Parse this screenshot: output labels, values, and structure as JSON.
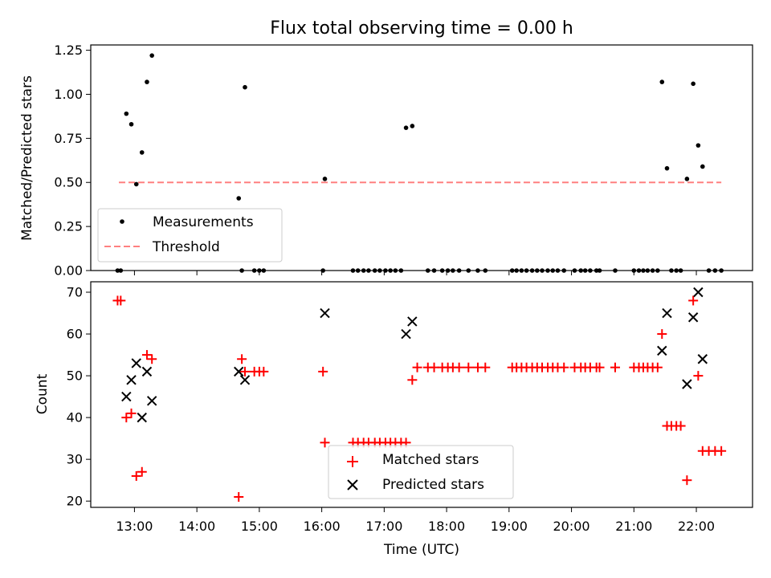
{
  "chart_data": [
    {
      "type": "scatter",
      "title": "Flux total observing time = 0.00 h",
      "xlabel": "",
      "ylabel": "Matched/Predicted stars",
      "ylim": [
        0,
        1.28
      ],
      "xlim": [
        12.3,
        22.9
      ],
      "yticks": [
        0.0,
        0.25,
        0.5,
        0.75,
        1.0,
        1.25
      ],
      "ytick_labels": [
        "0.00",
        "0.25",
        "0.50",
        "0.75",
        "1.00",
        "1.25"
      ],
      "legend": {
        "position": "lower-left",
        "entries": [
          "Measurements",
          "Threshold"
        ]
      },
      "grid": false,
      "colors": {
        "measurements": "#000000",
        "threshold": "#ff8080"
      },
      "series": [
        {
          "name": "Measurements",
          "marker": "dot",
          "x": [
            12.73,
            12.78,
            12.87,
            12.95,
            13.03,
            13.12,
            13.2,
            13.28,
            14.67,
            14.72,
            14.77,
            14.92,
            15.0,
            15.07,
            16.02,
            16.05,
            16.5,
            16.58,
            16.67,
            16.75,
            16.85,
            16.93,
            17.02,
            17.1,
            17.18,
            17.27,
            17.35,
            17.45,
            17.7,
            17.8,
            17.93,
            18.02,
            18.1,
            18.2,
            18.35,
            18.5,
            18.62,
            19.05,
            19.12,
            19.2,
            19.28,
            19.37,
            19.45,
            19.53,
            19.62,
            19.7,
            19.78,
            19.88,
            20.05,
            20.15,
            20.22,
            20.3,
            20.4,
            20.45,
            20.7,
            21.0,
            21.08,
            21.15,
            21.22,
            21.3,
            21.38,
            21.45,
            21.53,
            21.6,
            21.68,
            21.75,
            21.85,
            21.95,
            22.03,
            22.1,
            22.2,
            22.3,
            22.4
          ],
          "y": [
            0,
            0,
            0.89,
            0.83,
            0.49,
            0.67,
            1.07,
            1.22,
            0.41,
            0,
            1.04,
            0,
            0,
            0,
            0,
            0.52,
            0,
            0,
            0,
            0,
            0,
            0,
            0,
            0,
            0,
            0,
            0.81,
            0.82,
            0,
            0,
            0,
            0,
            0,
            0,
            0,
            0,
            0,
            0,
            0,
            0,
            0,
            0,
            0,
            0,
            0,
            0,
            0,
            0,
            0,
            0,
            0,
            0,
            0,
            0,
            0,
            0,
            0,
            0,
            0,
            0,
            0,
            1.07,
            0.58,
            0,
            0,
            0,
            0.52,
            1.06,
            0.71,
            0.59,
            0,
            0,
            0
          ]
        },
        {
          "name": "Threshold",
          "marker": "dashed-line",
          "x": [
            12.75,
            22.4
          ],
          "y": [
            0.5,
            0.5
          ]
        }
      ]
    },
    {
      "type": "scatter",
      "title": "",
      "xlabel": "Time (UTC)",
      "ylabel": "Count",
      "ylim": [
        18.5,
        72.5
      ],
      "xlim": [
        12.3,
        22.9
      ],
      "yticks": [
        20,
        30,
        40,
        50,
        60,
        70
      ],
      "ytick_labels": [
        "20",
        "30",
        "40",
        "50",
        "60",
        "70"
      ],
      "xticks": [
        13,
        14,
        15,
        16,
        17,
        18,
        19,
        20,
        21,
        22
      ],
      "xtick_labels": [
        "13:00",
        "14:00",
        "15:00",
        "16:00",
        "17:00",
        "18:00",
        "19:00",
        "20:00",
        "21:00",
        "22:00"
      ],
      "legend": {
        "position": "lower-center",
        "entries": [
          "Matched stars",
          "Predicted stars"
        ]
      },
      "grid": false,
      "colors": {
        "matched": "#ff0000",
        "predicted": "#000000"
      },
      "series": [
        {
          "name": "Matched stars",
          "marker": "plus",
          "x": [
            12.73,
            12.78,
            12.87,
            12.95,
            13.03,
            13.12,
            13.2,
            13.28,
            14.67,
            14.72,
            14.77,
            14.92,
            15.0,
            15.07,
            16.02,
            16.05,
            16.5,
            16.58,
            16.67,
            16.75,
            16.85,
            16.93,
            17.02,
            17.1,
            17.18,
            17.27,
            17.35,
            17.45,
            17.53,
            17.7,
            17.8,
            17.93,
            18.02,
            18.1,
            18.2,
            18.35,
            18.5,
            18.62,
            19.05,
            19.12,
            19.2,
            19.28,
            19.37,
            19.45,
            19.53,
            19.62,
            19.7,
            19.78,
            19.88,
            20.05,
            20.15,
            20.22,
            20.3,
            20.4,
            20.45,
            20.7,
            21.0,
            21.08,
            21.15,
            21.22,
            21.3,
            21.38,
            21.45,
            21.53,
            21.6,
            21.68,
            21.75,
            21.85,
            21.95,
            22.03,
            22.1,
            22.2,
            22.3,
            22.4
          ],
          "y": [
            68,
            68,
            40,
            41,
            26,
            27,
            55,
            54,
            21,
            54,
            51,
            51,
            51,
            51,
            51,
            34,
            34,
            34,
            34,
            34,
            34,
            34,
            34,
            34,
            34,
            34,
            34,
            49,
            52,
            52,
            52,
            52,
            52,
            52,
            52,
            52,
            52,
            52,
            52,
            52,
            52,
            52,
            52,
            52,
            52,
            52,
            52,
            52,
            52,
            52,
            52,
            52,
            52,
            52,
            52,
            52,
            52,
            52,
            52,
            52,
            52,
            52,
            60,
            38,
            38,
            38,
            38,
            25,
            68,
            50,
            32,
            32,
            32,
            32
          ]
        },
        {
          "name": "Predicted stars",
          "marker": "x",
          "x": [
            12.87,
            12.95,
            13.03,
            13.12,
            13.2,
            13.28,
            14.67,
            14.77,
            16.05,
            17.35,
            17.45,
            21.45,
            21.53,
            21.85,
            21.95,
            22.03,
            22.1
          ],
          "y": [
            45,
            49,
            53,
            40,
            51,
            44,
            51,
            49,
            65,
            60,
            63,
            56,
            65,
            48,
            64,
            70,
            54
          ]
        }
      ]
    }
  ]
}
